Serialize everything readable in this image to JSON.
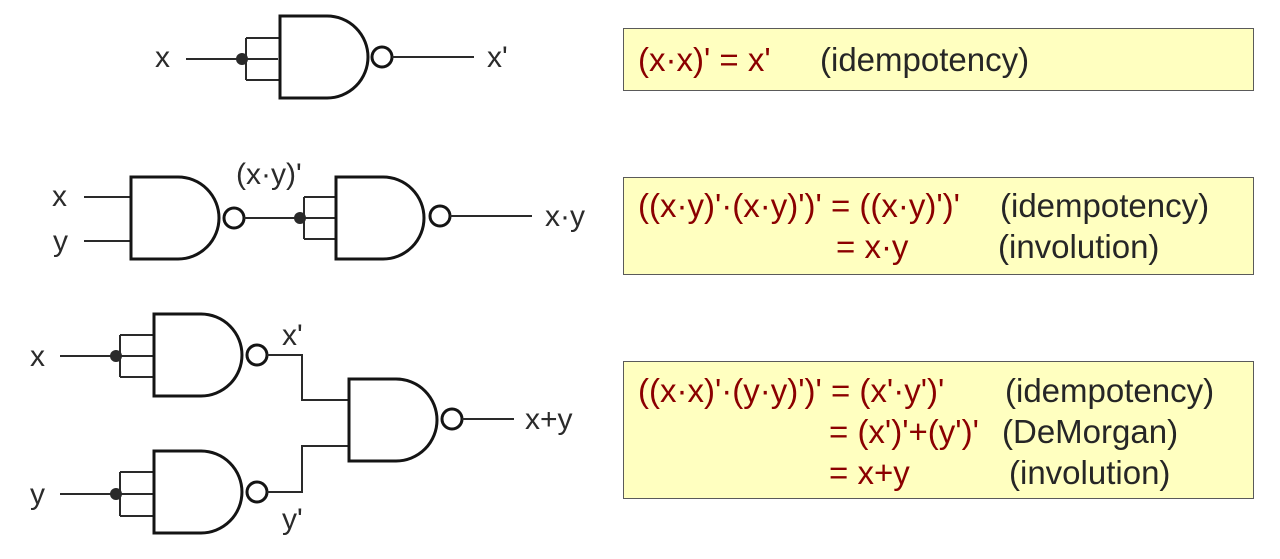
{
  "colors": {
    "equation": "#8b0000",
    "note": "#262626",
    "box_fill": "#ffffc0",
    "box_border": "#5a5a5a",
    "wire": "#2a2a2a"
  },
  "circuit1": {
    "input": "x",
    "output": "x'"
  },
  "circuit2": {
    "input_x": "x",
    "input_y": "y",
    "mid_label": "(x·y)'",
    "output": "x·y"
  },
  "circuit3": {
    "input_x": "x",
    "input_y": "y",
    "mid_top": "x'",
    "mid_bottom": "y'",
    "output": "x+y"
  },
  "box1": {
    "rows": [
      {
        "eq": "(x·x)' = x'",
        "note": "(idempotency)"
      }
    ]
  },
  "box2": {
    "rows": [
      {
        "eq": "((x·y)'·(x·y)')' = ((x·y)')'",
        "note": "(idempotency)"
      },
      {
        "eq": "= x·y",
        "note": "(involution)"
      }
    ]
  },
  "box3": {
    "rows": [
      {
        "eq": "((x·x)'·(y·y)')' = (x'·y')'",
        "note": "(idempotency)"
      },
      {
        "eq": "= (x')'+(y')'",
        "note": "(DeMorgan)"
      },
      {
        "eq": "= x+y",
        "note": "(involution)"
      }
    ]
  }
}
